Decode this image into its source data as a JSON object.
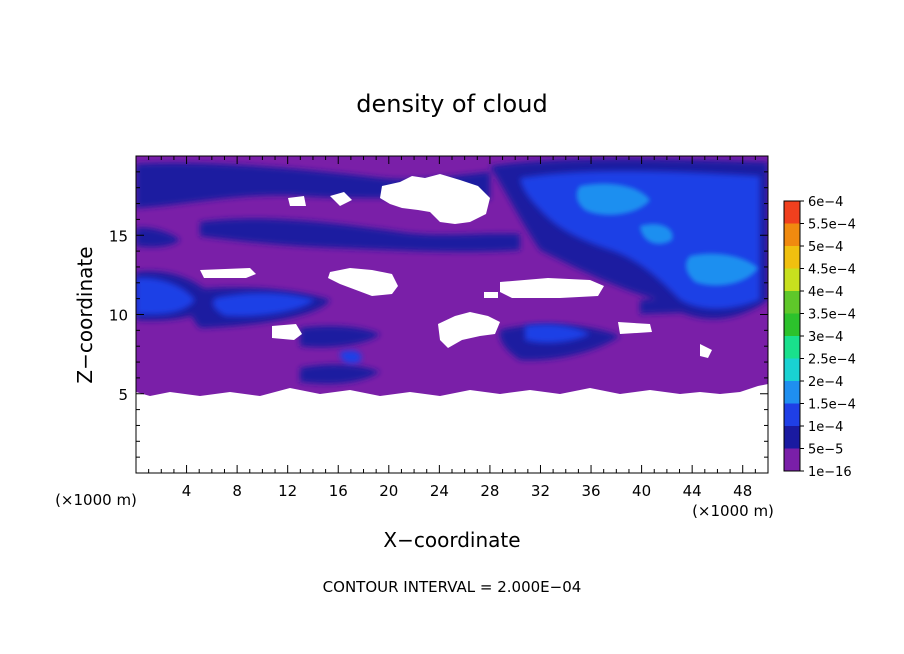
{
  "chart_data": {
    "type": "heatmap",
    "title": "density of cloud",
    "xlabel": "X−coordinate",
    "ylabel": "Z−coordinate",
    "x_unit_left": "(×1000 m)",
    "x_unit_right": "(×1000 m)",
    "xlim": [
      0,
      50
    ],
    "ylim": [
      0,
      20
    ],
    "x_ticks": [
      4,
      8,
      12,
      16,
      20,
      24,
      28,
      32,
      36,
      40,
      44,
      48
    ],
    "y_ticks": [
      5,
      10,
      15
    ],
    "footer": "CONTOUR INTERVAL = 2.000E−04",
    "colorbar": {
      "labels": [
        "1e−16",
        "5e−5",
        "1e−4",
        "1.5e−4",
        "2e−4",
        "2.5e−4",
        "3e−4",
        "3.5e−4",
        "4e−4",
        "4.5e−4",
        "5e−4",
        "5.5e−4",
        "6e−4"
      ],
      "colors": [
        "#7a1fa8",
        "#1a1aa0",
        "#1f3fe6",
        "#1f8ff0",
        "#19d2d2",
        "#19e08c",
        "#2cc22c",
        "#5fc82a",
        "#c8e01e",
        "#f0c00f",
        "#f08a0f",
        "#f0401e",
        "#f08c8c"
      ]
    },
    "colors": {
      "background_cloud": "#7a1fa8",
      "level_5e-5": "#1a1aa0",
      "level_1e-4": "#1f3fe6",
      "level_1.5e-4": "#1f8ff0"
    }
  }
}
